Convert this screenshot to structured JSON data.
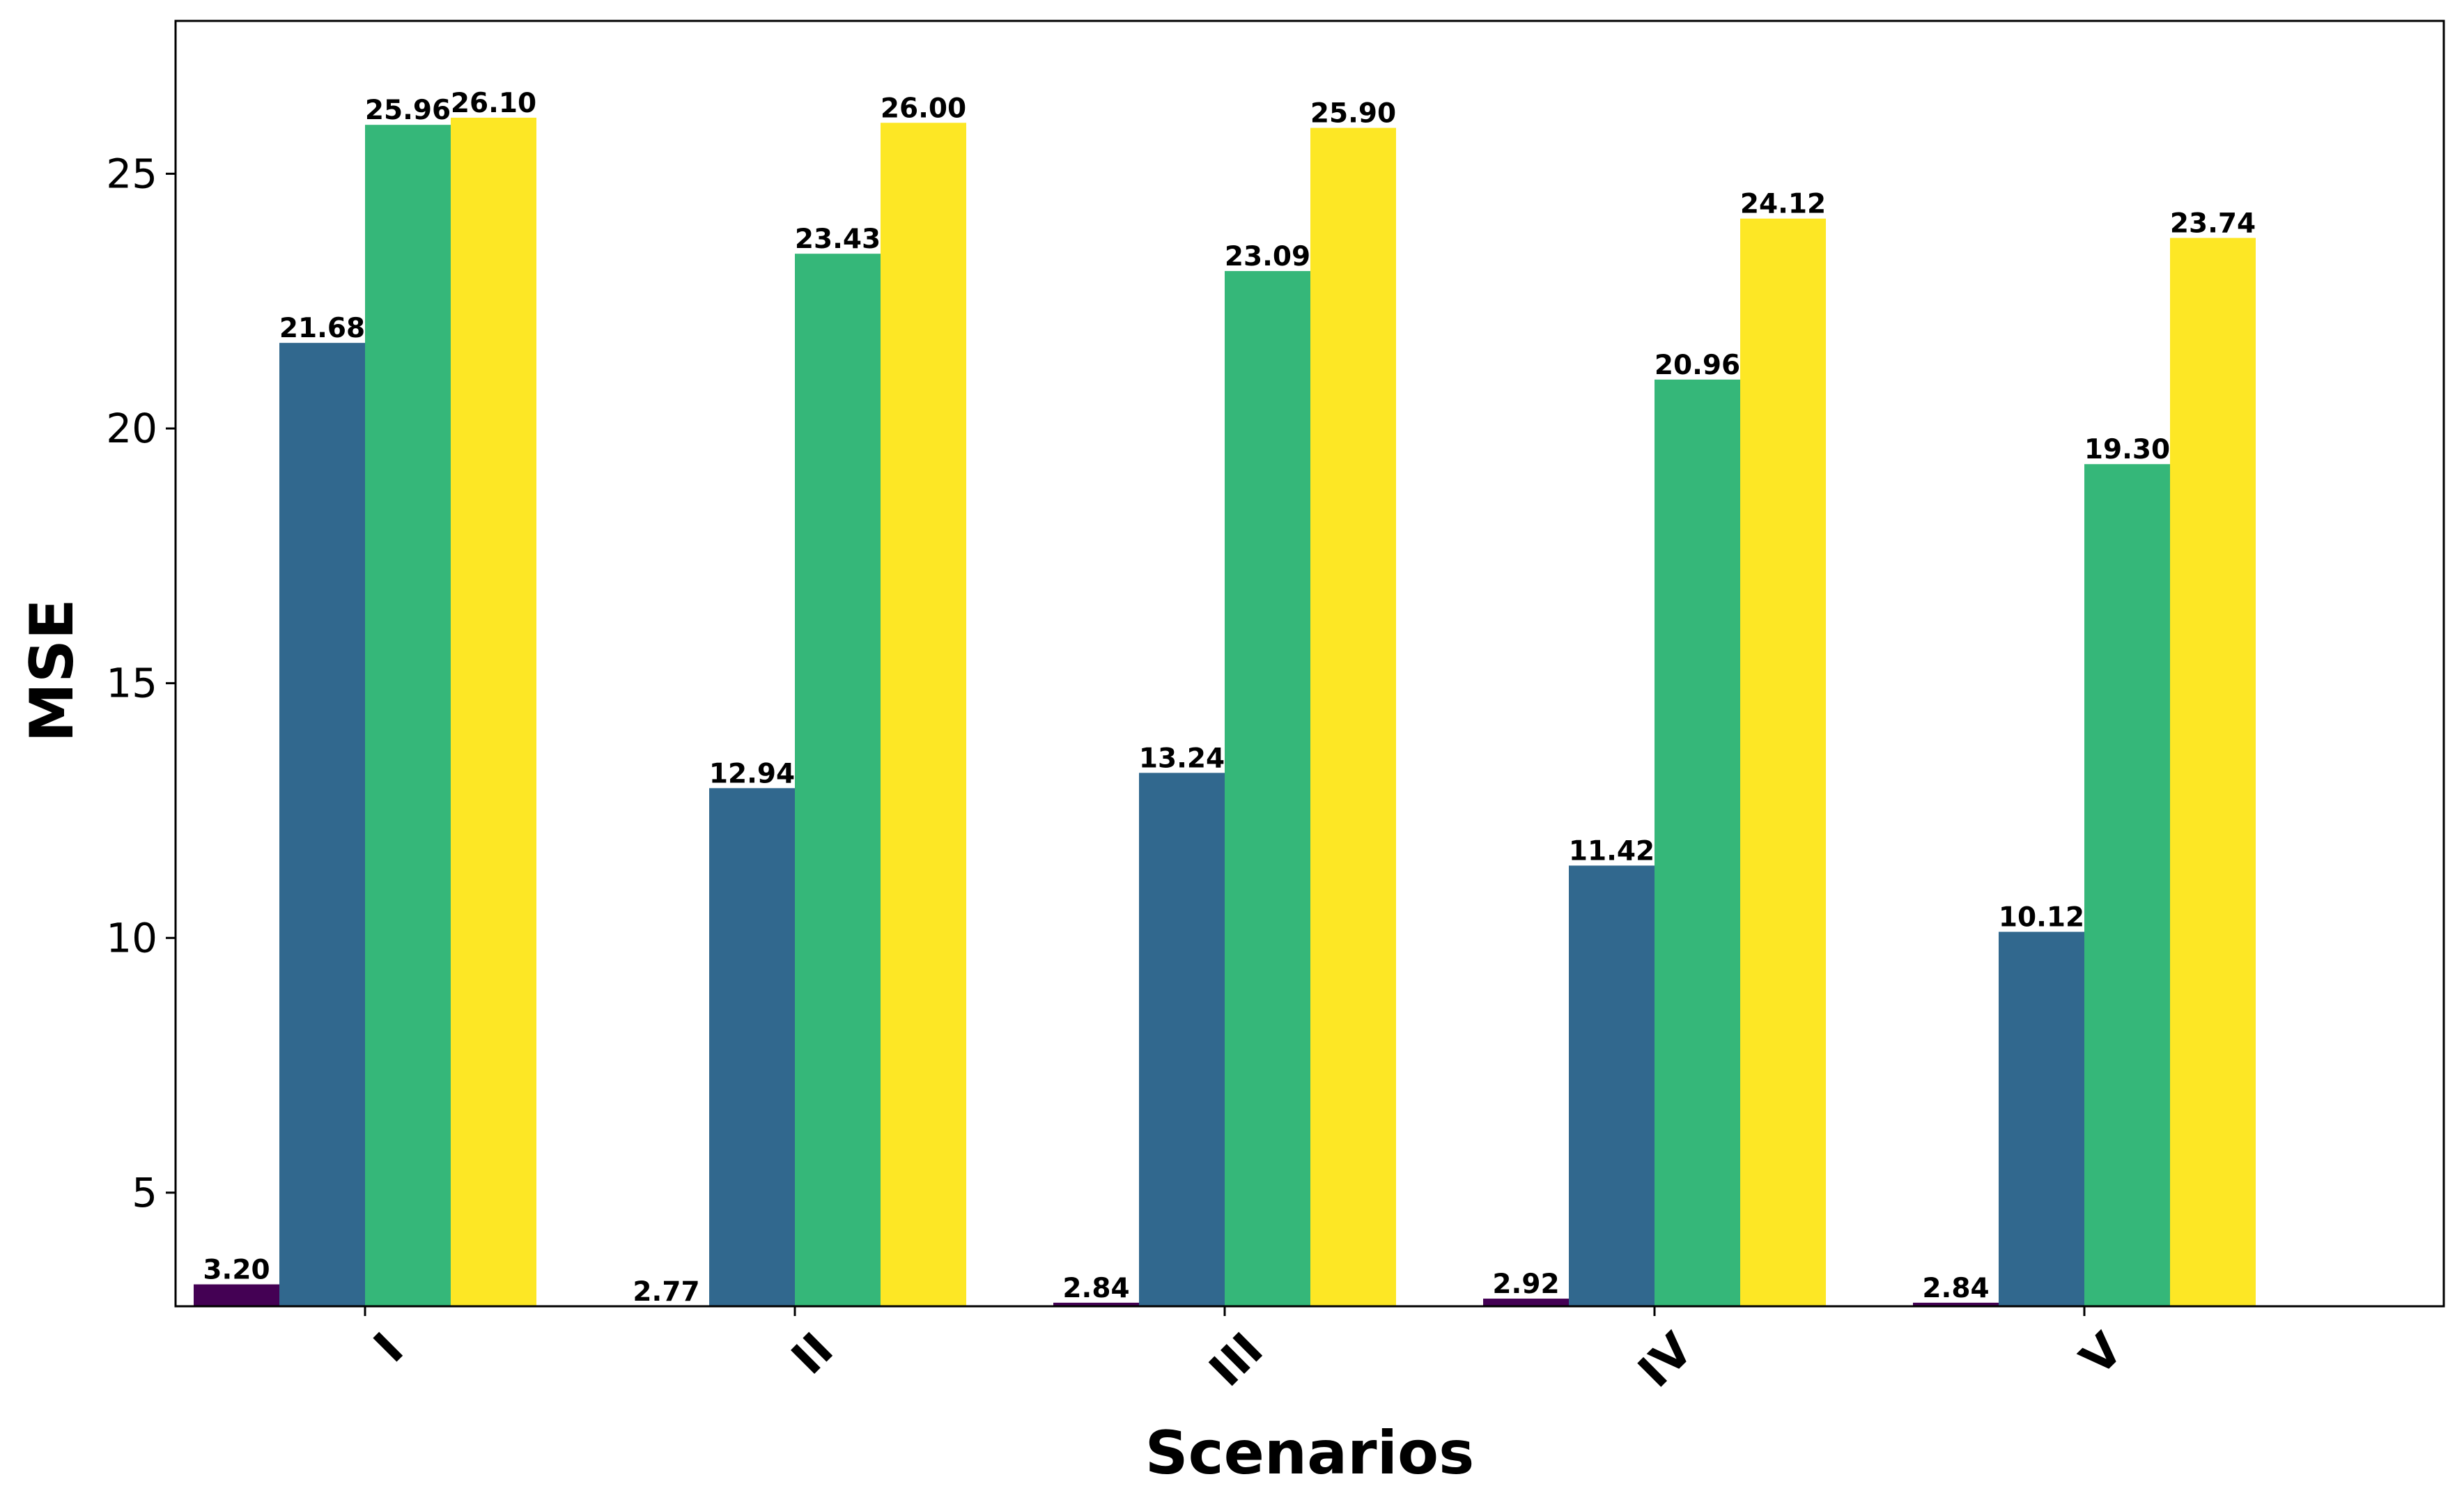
{
  "chart_data": {
    "type": "bar",
    "categories": [
      "I",
      "II",
      "III",
      "IV",
      "V"
    ],
    "series": [
      {
        "color": "#440154",
        "values": [
          3.2,
          2.77,
          2.84,
          2.92,
          2.84
        ]
      },
      {
        "color": "#31688e",
        "values": [
          21.68,
          12.94,
          13.24,
          11.42,
          10.12
        ]
      },
      {
        "color": "#35b779",
        "values": [
          25.96,
          23.43,
          23.09,
          20.96,
          19.3
        ]
      },
      {
        "color": "#fde725",
        "values": [
          26.1,
          26.0,
          25.9,
          24.12,
          23.74
        ]
      }
    ],
    "value_labels": [
      [
        "3.20",
        "2.77",
        "2.84",
        "2.92",
        "2.84"
      ],
      [
        "21.68",
        "12.94",
        "13.24",
        "11.42",
        "10.12"
      ],
      [
        "25.96",
        "23.43",
        "23.09",
        "20.96",
        "19.30"
      ],
      [
        "26.10",
        "26.00",
        "25.90",
        "24.12",
        "23.74"
      ]
    ],
    "xlabel": "Scenarios",
    "ylabel": "MSE",
    "ylim": [
      2.77,
      28.0
    ],
    "yticks": [
      5,
      10,
      15,
      20,
      25
    ],
    "ytick_labels": [
      "5",
      "10",
      "15",
      "20",
      "25"
    ],
    "xtick_rotation_deg": 45,
    "grid": false,
    "legend": false
  }
}
